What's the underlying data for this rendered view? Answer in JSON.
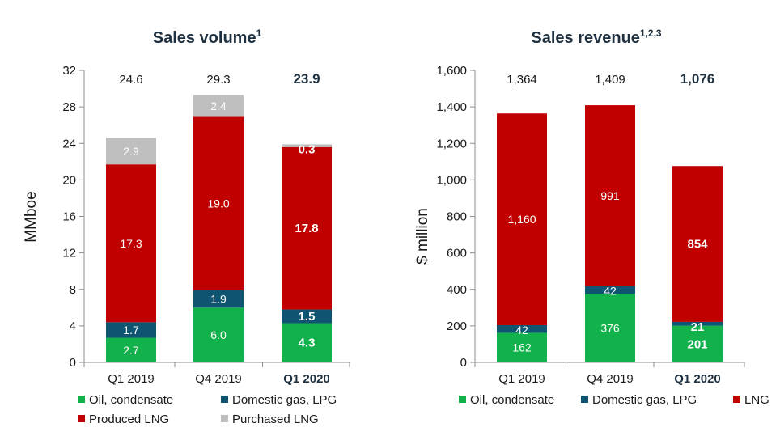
{
  "colors": {
    "oil": "#11b14b",
    "domestic": "#0f5470",
    "lng": "#c00000",
    "purchased": "#bfbfbf",
    "axis": "#8c8c8c"
  },
  "chart_data": [
    {
      "type": "bar",
      "stacked": true,
      "title": "Sales volume",
      "title_superscript": "1",
      "ylabel": "MMboe",
      "ylim": [
        0,
        32
      ],
      "yticks": [
        "0",
        "4",
        "8",
        "12",
        "16",
        "20",
        "24",
        "28",
        "32"
      ],
      "categories": [
        "Q1 2019",
        "Q4 2019",
        "Q1 2020"
      ],
      "highlight_index": 2,
      "totals": [
        "24.6",
        "29.3",
        "23.9"
      ],
      "series": [
        {
          "name": "Oil, condensate",
          "color_key": "oil",
          "values": [
            2.7,
            6.0,
            4.3
          ],
          "labels": [
            "2.7",
            "6.0",
            "4.3"
          ]
        },
        {
          "name": "Domestic gas, LPG",
          "color_key": "domestic",
          "values": [
            1.7,
            1.9,
            1.5
          ],
          "labels": [
            "1.7",
            "1.9",
            "1.5"
          ]
        },
        {
          "name": "Produced LNG",
          "color_key": "lng",
          "values": [
            17.3,
            19.0,
            17.8
          ],
          "labels": [
            "17.3",
            "19.0",
            "17.8"
          ]
        },
        {
          "name": "Purchased LNG",
          "color_key": "purchased",
          "values": [
            2.9,
            2.4,
            0.3
          ],
          "labels": [
            "2.9",
            "2.4",
            "0.3"
          ]
        }
      ]
    },
    {
      "type": "bar",
      "stacked": true,
      "title": "Sales revenue",
      "title_superscript": "1,2,3",
      "ylabel": "$ million",
      "ylim": [
        0,
        1600
      ],
      "yticks": [
        "0",
        "200",
        "400",
        "600",
        "800",
        "1,000",
        "1,200",
        "1,400",
        "1,600"
      ],
      "categories": [
        "Q1 2019",
        "Q4 2019",
        "Q1 2020"
      ],
      "highlight_index": 2,
      "totals": [
        "1,364",
        "1,409",
        "1,076"
      ],
      "series": [
        {
          "name": "Oil, condensate",
          "color_key": "oil",
          "values": [
            162,
            376,
            201
          ],
          "labels": [
            "162",
            "376",
            "201"
          ]
        },
        {
          "name": "Domestic gas, LPG",
          "color_key": "domestic",
          "values": [
            42,
            42,
            21
          ],
          "labels": [
            "42",
            "42",
            "21"
          ]
        },
        {
          "name": "LNG",
          "color_key": "lng",
          "values": [
            1160,
            991,
            854
          ],
          "labels": [
            "1,160",
            "991",
            "854"
          ]
        }
      ]
    }
  ]
}
